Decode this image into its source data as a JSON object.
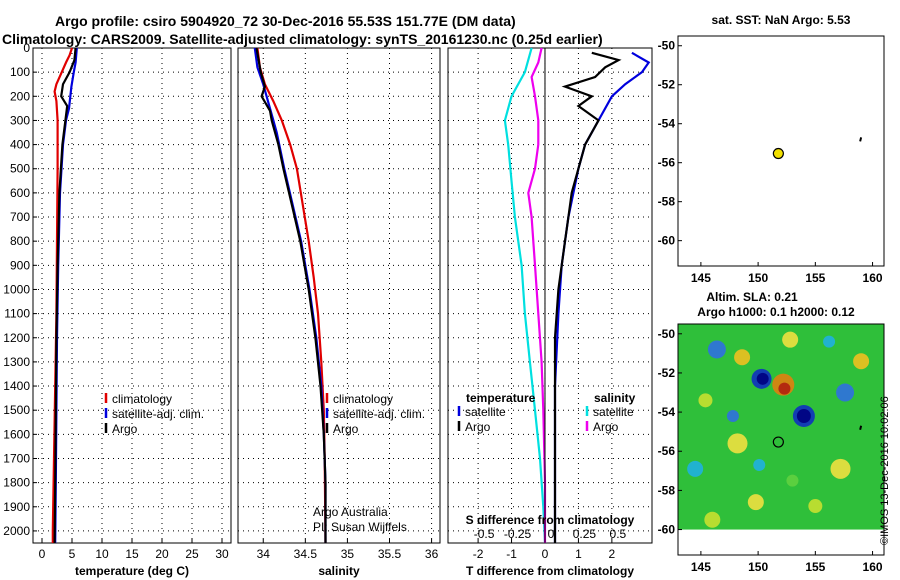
{
  "titles": {
    "line1": "Argo profile: csiro 5904920_72 30-Dec-2016 55.53S 151.77E (DM data)",
    "line2": "Climatology: CARS2009. Satellite-adjusted climatology: synTS_20161230.nc (0.25d earlier)"
  },
  "colors": {
    "climatology": "#e00000",
    "satellite": "#0000dd",
    "argo": "#000000",
    "sat_salinity": "#00e0e0",
    "argo_salinity": "#ee00ee",
    "marker": "#f2e000"
  },
  "chart_data": [
    {
      "type": "line",
      "name": "temperature-panel",
      "xlabel": "temperature (deg C)",
      "ylabel": "",
      "xlim": [
        -1.5,
        31.5
      ],
      "ylim": [
        2050,
        0
      ],
      "xticks": [
        0,
        5,
        10,
        15,
        20,
        25,
        30
      ],
      "yticks": [
        0,
        100,
        200,
        300,
        400,
        500,
        600,
        700,
        800,
        900,
        1000,
        1100,
        1200,
        1300,
        1400,
        1500,
        1600,
        1700,
        1800,
        1900,
        2000
      ],
      "grid": true,
      "legend": {
        "placement": "lower-right",
        "entries": [
          "climatology",
          "satellite-adj. clim.",
          "Argo"
        ]
      },
      "series": [
        {
          "name": "climatology",
          "color": "#e00000",
          "points": [
            [
              5.0,
              0
            ],
            [
              4.6,
              30
            ],
            [
              4.0,
              60
            ],
            [
              3.3,
              100
            ],
            [
              2.4,
              150
            ],
            [
              2.1,
              180
            ],
            [
              2.4,
              220
            ],
            [
              2.6,
              300
            ],
            [
              2.6,
              500
            ],
            [
              2.5,
              800
            ],
            [
              2.4,
              1100
            ],
            [
              2.2,
              1400
            ],
            [
              2.0,
              1700
            ],
            [
              1.8,
              2000
            ],
            [
              1.8,
              2050
            ]
          ]
        },
        {
          "name": "satellite-adj. clim.",
          "color": "#0000dd",
          "points": [
            [
              5.8,
              0
            ],
            [
              5.6,
              60
            ],
            [
              5.3,
              100
            ],
            [
              4.9,
              160
            ],
            [
              4.5,
              250
            ],
            [
              4.0,
              300
            ],
            [
              3.5,
              400
            ],
            [
              3.0,
              600
            ],
            [
              2.7,
              900
            ],
            [
              2.5,
              1200
            ],
            [
              2.4,
              1500
            ],
            [
              2.3,
              1800
            ],
            [
              2.2,
              2050
            ]
          ]
        },
        {
          "name": "Argo",
          "color": "#000000",
          "points": [
            [
              5.6,
              0
            ],
            [
              5.4,
              50
            ],
            [
              4.6,
              100
            ],
            [
              3.5,
              150
            ],
            [
              3.2,
              200
            ],
            [
              4.2,
              240
            ],
            [
              3.9,
              300
            ],
            [
              3.4,
              400
            ],
            [
              2.9,
              600
            ],
            [
              2.6,
              900
            ],
            [
              2.4,
              1200
            ],
            [
              2.3,
              1500
            ],
            [
              2.2,
              1800
            ],
            [
              2.1,
              2050
            ]
          ]
        }
      ]
    },
    {
      "type": "line",
      "name": "salinity-panel",
      "xlabel": "salinity",
      "ylabel": "",
      "xlim": [
        33.7,
        36.1
      ],
      "ylim": [
        2050,
        0
      ],
      "xticks": [
        34,
        34.5,
        35,
        35.5,
        36
      ],
      "grid": true,
      "legend": {
        "placement": "lower-right",
        "entries": [
          "climatology",
          "satellite-adj. clim.",
          "Argo"
        ]
      },
      "annotations": [
        "Argo Australia",
        "PI: Susan Wijffels"
      ],
      "series": [
        {
          "name": "climatology",
          "color": "#e00000",
          "points": [
            [
              33.93,
              0
            ],
            [
              33.96,
              80
            ],
            [
              34.02,
              150
            ],
            [
              34.12,
              220
            ],
            [
              34.22,
              300
            ],
            [
              34.32,
              400
            ],
            [
              34.4,
              500
            ],
            [
              34.47,
              650
            ],
            [
              34.54,
              800
            ],
            [
              34.6,
              950
            ],
            [
              34.65,
              1100
            ],
            [
              34.69,
              1300
            ],
            [
              34.72,
              1500
            ],
            [
              34.73,
              1700
            ],
            [
              34.74,
              2050
            ]
          ]
        },
        {
          "name": "satellite-adj. clim.",
          "color": "#0000dd",
          "points": [
            [
              33.9,
              0
            ],
            [
              33.93,
              80
            ],
            [
              34.0,
              150
            ],
            [
              34.08,
              250
            ],
            [
              34.16,
              350
            ],
            [
              34.25,
              500
            ],
            [
              34.35,
              650
            ],
            [
              34.45,
              800
            ],
            [
              34.55,
              1000
            ],
            [
              34.63,
              1200
            ],
            [
              34.69,
              1400
            ],
            [
              34.72,
              1600
            ],
            [
              34.74,
              1800
            ],
            [
              34.74,
              2050
            ]
          ]
        },
        {
          "name": "Argo",
          "color": "#000000",
          "points": [
            [
              33.92,
              0
            ],
            [
              33.97,
              100
            ],
            [
              34.02,
              160
            ],
            [
              33.98,
              200
            ],
            [
              34.08,
              260
            ],
            [
              34.1,
              300
            ],
            [
              34.18,
              400
            ],
            [
              34.24,
              500
            ],
            [
              34.34,
              650
            ],
            [
              34.44,
              800
            ],
            [
              34.54,
              1000
            ],
            [
              34.62,
              1200
            ],
            [
              34.68,
              1400
            ],
            [
              34.72,
              1600
            ],
            [
              34.74,
              1800
            ],
            [
              34.74,
              2050
            ]
          ]
        }
      ]
    },
    {
      "type": "line",
      "name": "difference-panel",
      "xlabel": "T difference from climatology",
      "xlabel2": "S difference from climatology",
      "xlim": [
        -2.9,
        3.2
      ],
      "ylim": [
        2050,
        0
      ],
      "xticks": [
        -2,
        -1,
        0,
        1,
        2
      ],
      "xticks2": [
        {
          "label": "-0.5",
          "x": -2
        },
        {
          "label": "-0.25",
          "x": -1
        },
        {
          "label": "0",
          "x": 0
        },
        {
          "label": "0.25",
          "x": 1
        },
        {
          "label": "0.5",
          "x": 2
        }
      ],
      "grid": true,
      "legend": {
        "placement": "lower-center",
        "left_title": "temperature",
        "right_title": "salinity",
        "left_entries": [
          "satellite",
          "Argo"
        ],
        "right_entries": [
          "satellite",
          "Argo"
        ]
      },
      "series": [
        {
          "name": "T satellite",
          "color": "#0000dd",
          "points": [
            [
              2.6,
              20
            ],
            [
              3.1,
              60
            ],
            [
              2.9,
              100
            ],
            [
              2.4,
              150
            ],
            [
              2.0,
              200
            ],
            [
              1.6,
              300
            ],
            [
              1.2,
              400
            ],
            [
              1.0,
              500
            ],
            [
              0.7,
              700
            ],
            [
              0.5,
              900
            ],
            [
              0.4,
              1100
            ],
            [
              0.3,
              1400
            ],
            [
              0.3,
              1700
            ],
            [
              0.3,
              2050
            ]
          ]
        },
        {
          "name": "T Argo",
          "color": "#000000",
          "points": [
            [
              1.4,
              20
            ],
            [
              2.2,
              50
            ],
            [
              1.8,
              80
            ],
            [
              1.5,
              120
            ],
            [
              0.6,
              160
            ],
            [
              1.4,
              200
            ],
            [
              1.0,
              240
            ],
            [
              1.6,
              300
            ],
            [
              1.2,
              400
            ],
            [
              1.0,
              500
            ],
            [
              0.8,
              600
            ],
            [
              0.7,
              700
            ],
            [
              0.6,
              800
            ],
            [
              0.5,
              900
            ],
            [
              0.4,
              1000
            ],
            [
              0.3,
              1200
            ],
            [
              0.3,
              1500
            ],
            [
              0.3,
              1800
            ],
            [
              0.3,
              2050
            ]
          ]
        },
        {
          "name": "S satellite",
          "color": "#00e0e0",
          "points": [
            [
              -0.4,
              0
            ],
            [
              -0.6,
              100
            ],
            [
              -1.0,
              200
            ],
            [
              -1.2,
              300
            ],
            [
              -1.1,
              400
            ],
            [
              -1.0,
              550
            ],
            [
              -0.9,
              700
            ],
            [
              -0.7,
              900
            ],
            [
              -0.6,
              1100
            ],
            [
              -0.45,
              1300
            ],
            [
              -0.3,
              1500
            ],
            [
              -0.15,
              1700
            ],
            [
              -0.05,
              1900
            ],
            [
              0,
              2050
            ]
          ]
        },
        {
          "name": "S Argo",
          "color": "#ee00ee",
          "points": [
            [
              -0.1,
              0
            ],
            [
              -0.2,
              60
            ],
            [
              -0.4,
              120
            ],
            [
              -0.3,
              200
            ],
            [
              -0.2,
              300
            ],
            [
              -0.2,
              400
            ],
            [
              -0.3,
              500
            ],
            [
              -0.5,
              600
            ],
            [
              -0.4,
              700
            ],
            [
              -0.3,
              900
            ],
            [
              -0.2,
              1100
            ],
            [
              -0.1,
              1300
            ],
            [
              -0.05,
              1500
            ],
            [
              0,
              1800
            ],
            [
              0,
              2050
            ]
          ]
        }
      ]
    },
    {
      "type": "scatter",
      "name": "sst-map",
      "title": "sat. SST: NaN Argo: 5.53",
      "xlim": [
        143,
        161
      ],
      "ylim": [
        -61.3,
        -49.5
      ],
      "xticks": [
        145,
        150,
        155,
        160
      ],
      "yticks": [
        -50,
        -52,
        -54,
        -56,
        -58,
        -60
      ],
      "marker": {
        "x": 151.77,
        "y": -55.53
      }
    },
    {
      "type": "heatmap",
      "name": "sla-map",
      "title": "Altim. SLA: 0.21",
      "subtitle": "Argo h1000: 0.1 h2000: 0.12",
      "xlim": [
        143,
        161
      ],
      "ylim": [
        -61.3,
        -49.5
      ],
      "xticks": [
        145,
        150,
        155,
        160
      ],
      "yticks": [
        -50,
        -52,
        -54,
        -56,
        -58,
        -60
      ],
      "marker": {
        "x": 151.77,
        "y": -55.53
      }
    }
  ],
  "legend_labels": {
    "climatology": "climatology",
    "satellite_adj": "satellite-adj. clim.",
    "argo": "Argo",
    "temperature": "temperature",
    "salinity": "salinity",
    "satellite": "satellite"
  },
  "credit": "©IMOS 13-Dec-2016 10:02:06"
}
